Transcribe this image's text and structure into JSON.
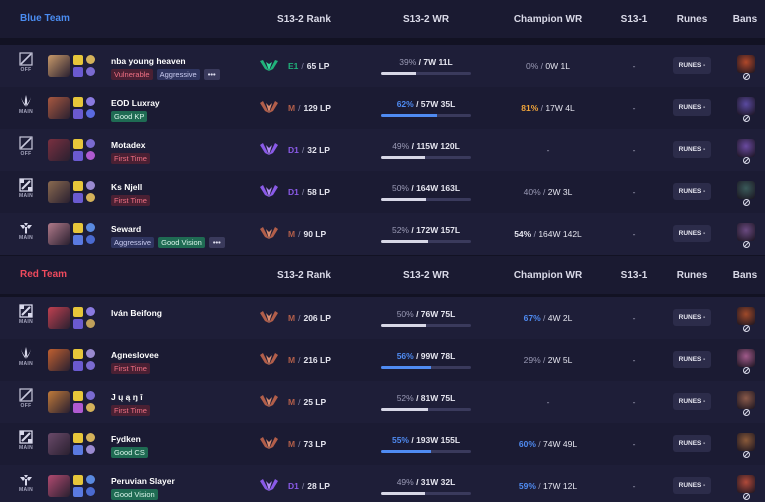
{
  "columns": {
    "rank": "S13-2 Rank",
    "wr": "S13-2 WR",
    "champion_wr": "Champion WR",
    "s13_1": "S13-1",
    "runes": "Runes",
    "bans": "Bans"
  },
  "colors": {
    "blue_team": "#4a8cf0",
    "red_team": "#ee4a5d",
    "emerald": "#20b27a",
    "master": "#b25e4a",
    "diamond": "#8a5ae8",
    "wr_high": "#4f8bf2",
    "cwr_gold": "#f0a43a"
  },
  "teams": [
    {
      "name": "Blue Team",
      "color": "#4a8cf0",
      "players": [
        {
          "role": "OFF",
          "role_icon": "off-role-icon",
          "champ_color": "#c89a6a",
          "spells": [
            "#e6c63a",
            "#6a5ad0"
          ],
          "runes": [
            "#d4b25a",
            "#7a6ad0"
          ],
          "name": "nba young heaven",
          "tags": [
            {
              "label": "Vulnerable",
              "type": "red"
            },
            {
              "label": "Aggressive",
              "type": "blue"
            },
            {
              "label": "•••",
              "type": "more"
            }
          ],
          "rank_tier": "E1",
          "rank_icon": "emerald",
          "lp": "65 LP",
          "wr_pct": "39%",
          "wr_record": "7W 11L",
          "wr_fraction": 0.39,
          "wr_high": false,
          "cwr_pct": "0%",
          "cwr_record": "0W 1L",
          "cwr_style": "dim",
          "s13_1": "-",
          "runes_label": "RUNES -",
          "ban_color": "#b0482a"
        },
        {
          "role": "MAIN",
          "role_icon": "jungle-role-icon",
          "champ_color": "#a85840",
          "spells": [
            "#e6c63a",
            "#6a5ad0"
          ],
          "runes": [
            "#8a7ae0",
            "#5a6ae0"
          ],
          "name": "EOD Luxray",
          "tags": [
            {
              "label": "Good KP",
              "type": "green"
            }
          ],
          "rank_tier": "M",
          "rank_icon": "master",
          "lp": "129 LP",
          "wr_pct": "62%",
          "wr_record": "57W 35L",
          "wr_fraction": 0.62,
          "wr_high": true,
          "cwr_pct": "81%",
          "cwr_record": "17W 4L",
          "cwr_style": "gold",
          "s13_1": "-",
          "runes_label": "RUNES -",
          "ban_color": "#5a4aa0"
        },
        {
          "role": "OFF",
          "role_icon": "off-role-icon",
          "champ_color": "#7a3040",
          "spells": [
            "#e6c63a",
            "#6a5ad0"
          ],
          "runes": [
            "#7a6ad0",
            "#b05ad0"
          ],
          "name": "Motadex",
          "tags": [
            {
              "label": "First Time",
              "type": "red"
            }
          ],
          "rank_tier": "D1",
          "rank_icon": "diamond",
          "lp": "32 LP",
          "wr_pct": "49%",
          "wr_record": "115W 120L",
          "wr_fraction": 0.49,
          "wr_high": false,
          "cwr_pct": "",
          "cwr_record": "-",
          "cwr_style": "dim",
          "s13_1": "-",
          "runes_label": "RUNES -",
          "ban_color": "#6a4aa0"
        },
        {
          "role": "MAIN",
          "role_icon": "mid-role-icon",
          "champ_color": "#8a6a50",
          "spells": [
            "#e6c63a",
            "#6a5ad0"
          ],
          "runes": [
            "#9a8ad0",
            "#d4b25a"
          ],
          "name": "Ks Njell",
          "tags": [
            {
              "label": "First Time",
              "type": "red"
            }
          ],
          "rank_tier": "D1",
          "rank_icon": "diamond",
          "lp": "58 LP",
          "wr_pct": "50%",
          "wr_record": "164W 163L",
          "wr_fraction": 0.5,
          "wr_high": false,
          "cwr_pct": "40%",
          "cwr_record": "2W 3L",
          "cwr_style": "dim",
          "s13_1": "-",
          "runes_label": "RUNES -",
          "ban_color": "#3a5a5a"
        },
        {
          "role": "MAIN",
          "role_icon": "support-role-icon",
          "champ_color": "#b07a8a",
          "spells": [
            "#e6c63a",
            "#5a7ae0"
          ],
          "runes": [
            "#5a8ae0",
            "#4a6ad0"
          ],
          "name": "Seward",
          "tags": [
            {
              "label": "Aggressive",
              "type": "blue"
            },
            {
              "label": "Good Vision",
              "type": "green"
            },
            {
              "label": "•••",
              "type": "more"
            }
          ],
          "rank_tier": "M",
          "rank_icon": "master",
          "lp": "90 LP",
          "wr_pct": "52%",
          "wr_record": "172W 157L",
          "wr_fraction": 0.52,
          "wr_high": false,
          "cwr_pct": "54%",
          "cwr_record": "164W 142L",
          "cwr_style": "white",
          "s13_1": "-",
          "runes_label": "RUNES -",
          "ban_color": "#6a4a80"
        }
      ]
    },
    {
      "name": "Red Team",
      "color": "#ee4a5d",
      "players": [
        {
          "role": "MAIN",
          "role_icon": "mid-role-icon",
          "champ_color": "#c04050",
          "spells": [
            "#e6c63a",
            "#6a5ad0"
          ],
          "runes": [
            "#8a7ae0",
            "#c0a05a"
          ],
          "name": "Iván Beifong",
          "tags": [],
          "rank_tier": "M",
          "rank_icon": "master",
          "lp": "206 LP",
          "wr_pct": "50%",
          "wr_record": "76W 75L",
          "wr_fraction": 0.5,
          "wr_high": false,
          "cwr_pct": "67%",
          "cwr_record": "4W 2L",
          "cwr_style": "high",
          "s13_1": "-",
          "runes_label": "RUNES -",
          "ban_color": "#a04a2a"
        },
        {
          "role": "MAIN",
          "role_icon": "jungle-role-icon",
          "champ_color": "#c06030",
          "spells": [
            "#e6c63a",
            "#6a5ad0"
          ],
          "runes": [
            "#9a8ad0",
            "#7a6ad0"
          ],
          "name": "Agneslovee",
          "tags": [
            {
              "label": "First Time",
              "type": "red"
            }
          ],
          "rank_tier": "M",
          "rank_icon": "master",
          "lp": "216 LP",
          "wr_pct": "56%",
          "wr_record": "99W 78L",
          "wr_fraction": 0.56,
          "wr_high": true,
          "cwr_pct": "29%",
          "cwr_record": "2W 5L",
          "cwr_style": "dim",
          "s13_1": "-",
          "runes_label": "RUNES -",
          "ban_color": "#a05a8a"
        },
        {
          "role": "OFF",
          "role_icon": "off-role-icon",
          "champ_color": "#c07a3a",
          "spells": [
            "#e6c63a",
            "#b05ad0"
          ],
          "runes": [
            "#7a6ad0",
            "#d4b25a"
          ],
          "name": "J ų ą ŋ î",
          "tags": [
            {
              "label": "First Time",
              "type": "red"
            }
          ],
          "rank_tier": "M",
          "rank_icon": "master",
          "lp": "25 LP",
          "wr_pct": "52%",
          "wr_record": "81W 75L",
          "wr_fraction": 0.52,
          "wr_high": false,
          "cwr_pct": "",
          "cwr_record": "-",
          "cwr_style": "dim",
          "s13_1": "-",
          "runes_label": "RUNES -",
          "ban_color": "#8a5a4a"
        },
        {
          "role": "MAIN",
          "role_icon": "mid-role-icon",
          "champ_color": "#6a4a6a",
          "spells": [
            "#e6c63a",
            "#5a7ae0"
          ],
          "runes": [
            "#d4b25a",
            "#9a8ad0"
          ],
          "name": "Fydken",
          "tags": [
            {
              "label": "Good CS",
              "type": "green"
            }
          ],
          "rank_tier": "M",
          "rank_icon": "master",
          "lp": "73 LP",
          "wr_pct": "55%",
          "wr_record": "193W 155L",
          "wr_fraction": 0.55,
          "wr_high": true,
          "cwr_pct": "60%",
          "cwr_record": "74W 49L",
          "cwr_style": "high",
          "s13_1": "-",
          "runes_label": "RUNES -",
          "ban_color": "#8a5a3a"
        },
        {
          "role": "MAIN",
          "role_icon": "support-role-icon",
          "champ_color": "#b04a70",
          "spells": [
            "#e6c63a",
            "#5a7ae0"
          ],
          "runes": [
            "#5a8ae0",
            "#4a6ad0"
          ],
          "name": "Peruvian Slayer",
          "tags": [
            {
              "label": "Good Vision",
              "type": "green"
            }
          ],
          "rank_tier": "D1",
          "rank_icon": "diamond",
          "lp": "28 LP",
          "wr_pct": "49%",
          "wr_record": "31W 32L",
          "wr_fraction": 0.49,
          "wr_high": false,
          "cwr_pct": "59%",
          "cwr_record": "17W 12L",
          "cwr_style": "high",
          "s13_1": "-",
          "runes_label": "RUNES -",
          "ban_color": "#b04a3a"
        }
      ]
    }
  ]
}
